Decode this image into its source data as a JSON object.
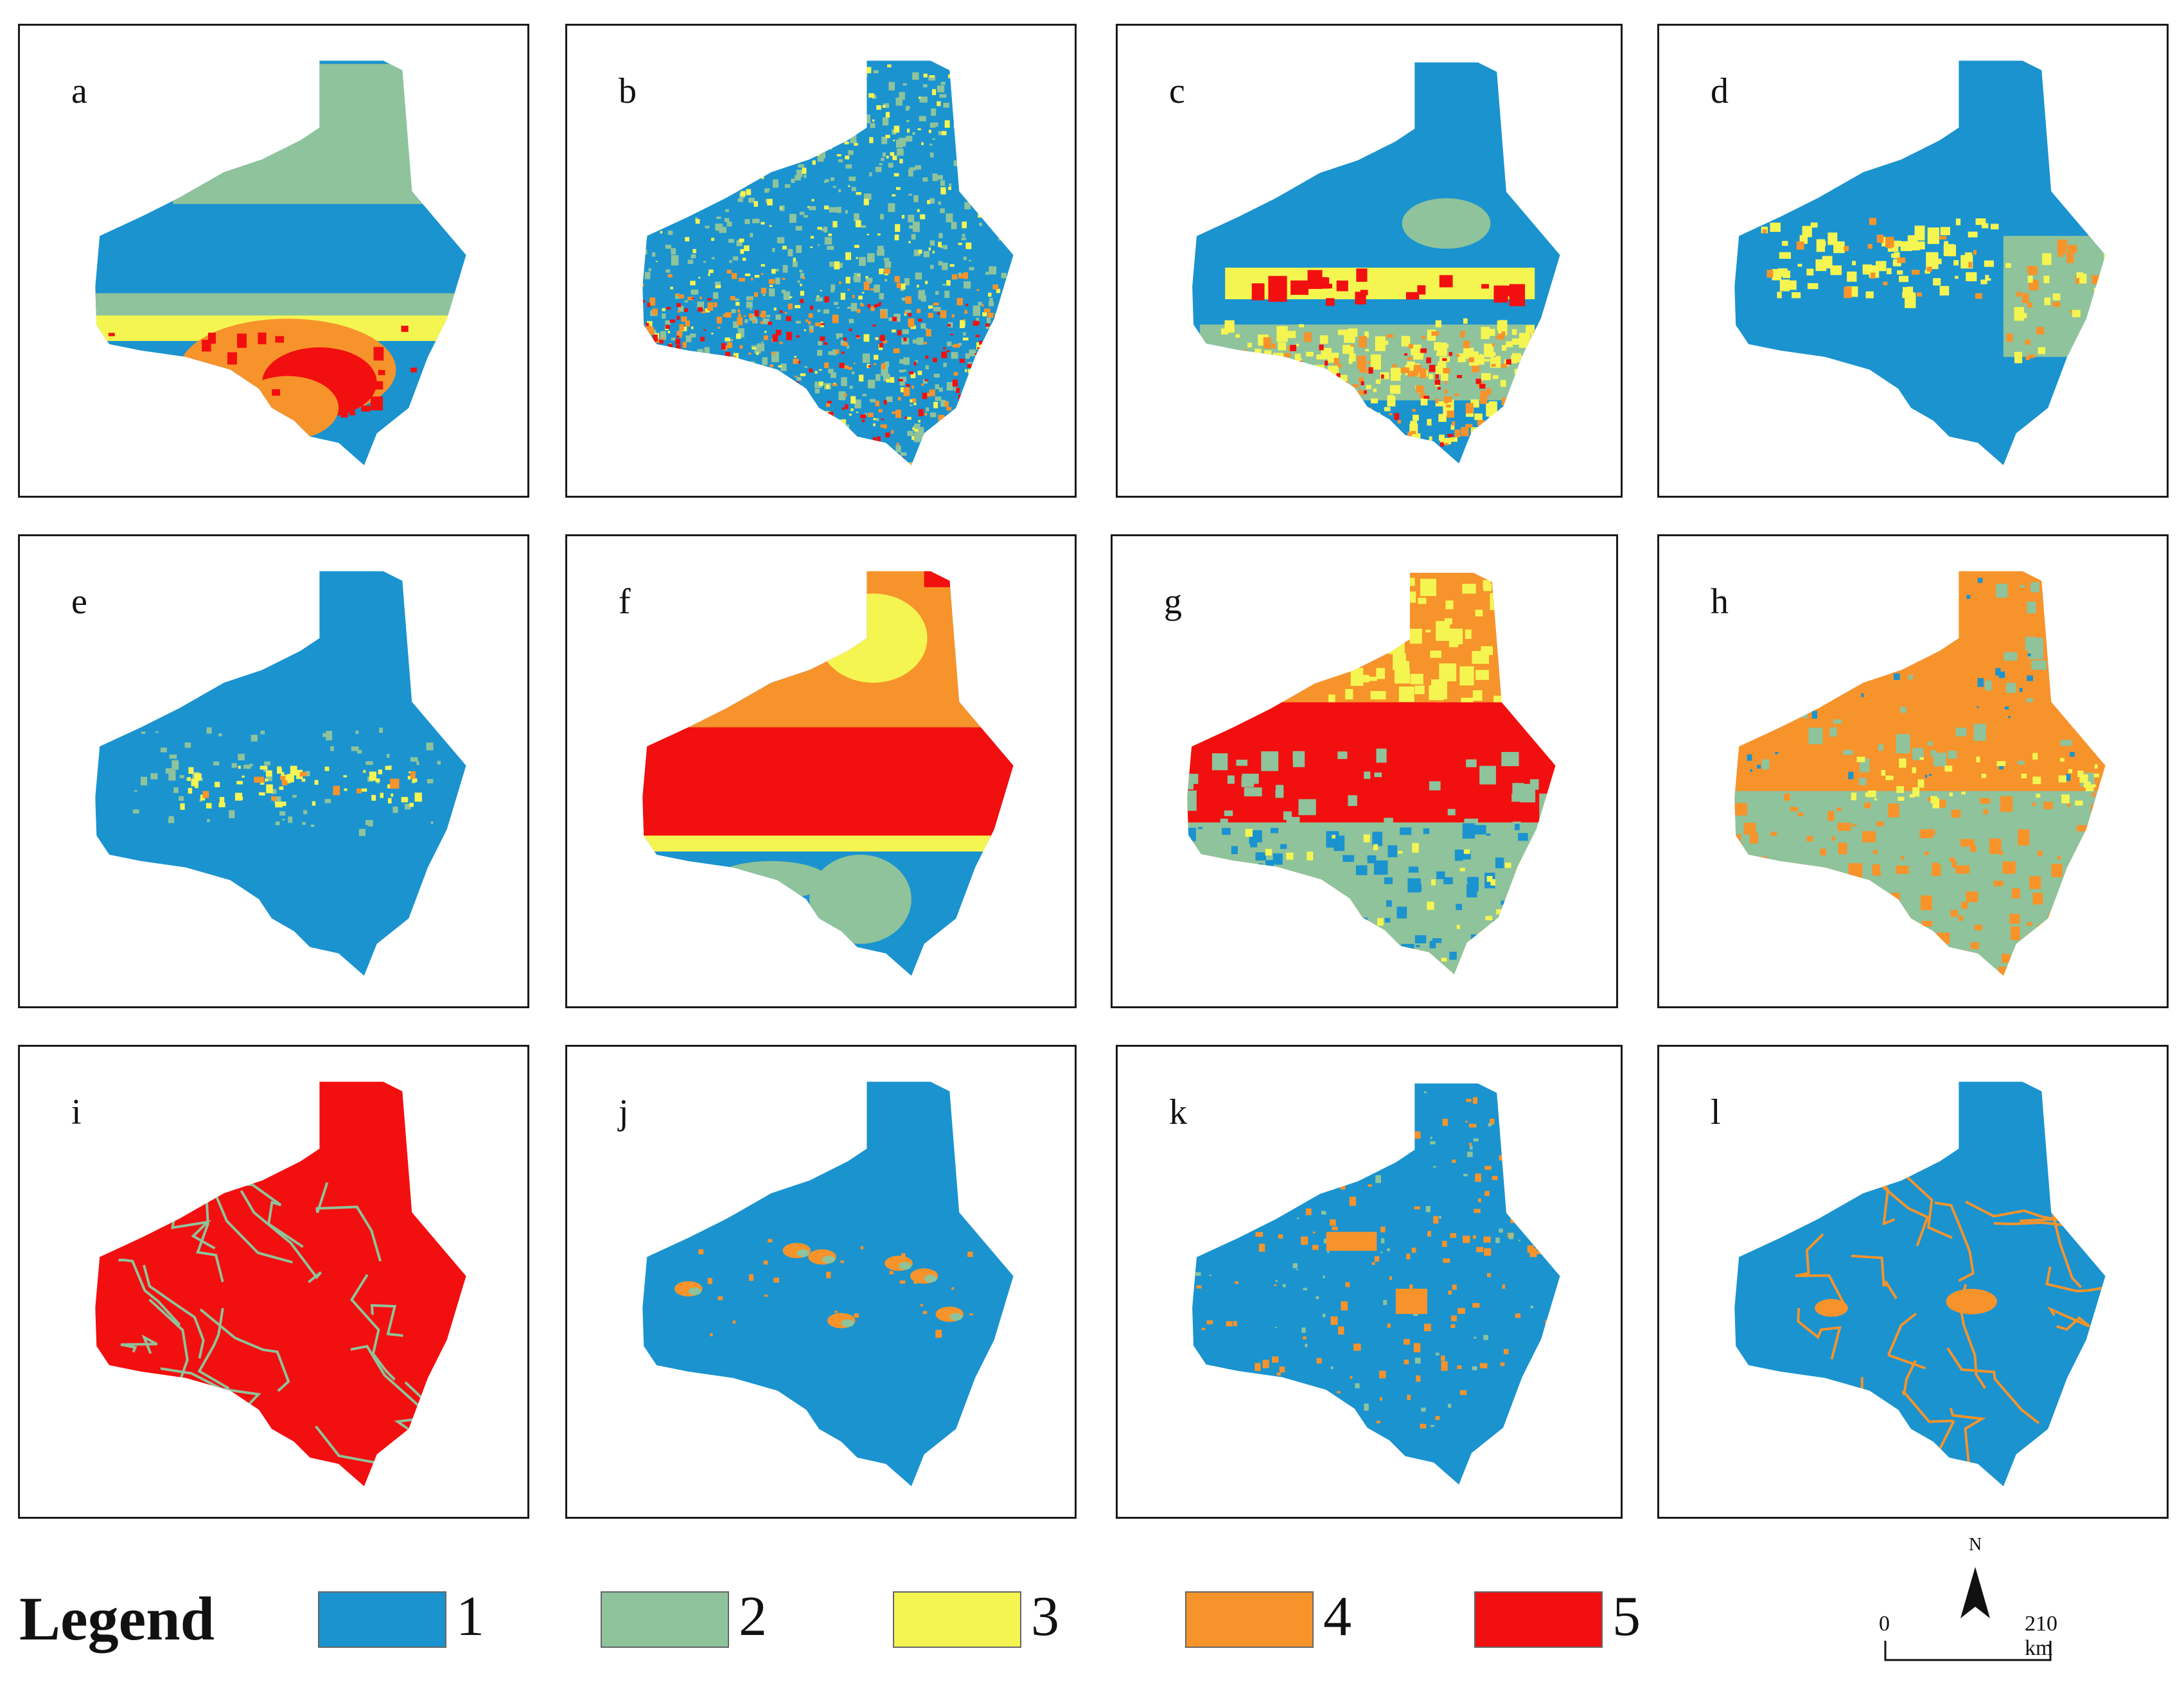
{
  "panels": [
    {
      "label": "a",
      "pattern": "bands_a"
    },
    {
      "label": "b",
      "pattern": "speckle"
    },
    {
      "label": "c",
      "pattern": "mostly_blue_south"
    },
    {
      "label": "d",
      "pattern": "blue_east_patch"
    },
    {
      "label": "e",
      "pattern": "blue_sparse"
    },
    {
      "label": "f",
      "pattern": "red_band"
    },
    {
      "label": "g",
      "pattern": "mixed_red"
    },
    {
      "label": "h",
      "pattern": "orange_green"
    },
    {
      "label": "i",
      "pattern": "red_streams"
    },
    {
      "label": "j",
      "pattern": "blue_spots"
    },
    {
      "label": "k",
      "pattern": "blue_many_spots"
    },
    {
      "label": "l",
      "pattern": "blue_roads"
    }
  ],
  "legend": {
    "title": "Legend",
    "items": [
      {
        "label": "1",
        "color": "#1a93cf"
      },
      {
        "label": "2",
        "color": "#8fc39b"
      },
      {
        "label": "3",
        "color": "#f5f552"
      },
      {
        "label": "4",
        "color": "#f7932b"
      },
      {
        "label": "5",
        "color": "#f20f0f"
      }
    ]
  },
  "scale_bar": {
    "north_label": "N",
    "start_label": "0",
    "end_label": "210 km"
  }
}
